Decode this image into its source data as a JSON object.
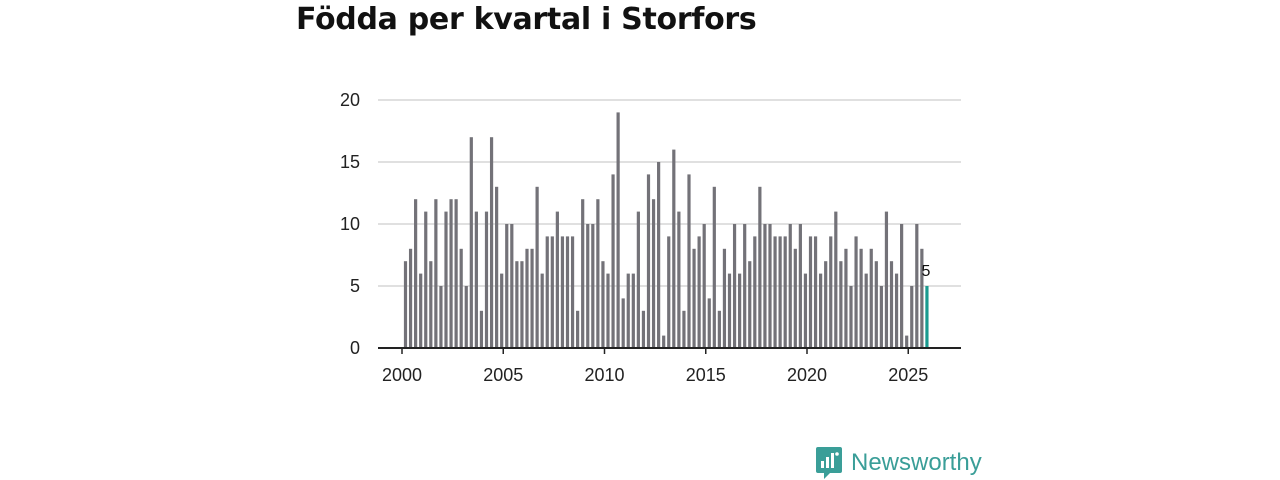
{
  "title": "Födda per kvartal i Storfors",
  "brand": "Newsworthy",
  "colors": {
    "bar": "#737278",
    "highlight": "#1a9a8f",
    "grid": "#d6d6d6",
    "axis": "#222222",
    "brand": "#3a9e98"
  },
  "chart_data": {
    "type": "bar",
    "title": "Födda per kvartal i Storfors",
    "xlabel": "",
    "ylabel": "",
    "ylim": [
      0,
      20
    ],
    "y_ticks": [
      0,
      5,
      10,
      15,
      20
    ],
    "x_ticks": [
      "2000",
      "2005",
      "2010",
      "2015",
      "2020",
      "2025"
    ],
    "start_year": 2000,
    "start_quarter": 1,
    "values": [
      7,
      8,
      12,
      6,
      11,
      7,
      12,
      5,
      11,
      12,
      12,
      8,
      5,
      17,
      11,
      3,
      11,
      17,
      13,
      6,
      10,
      10,
      7,
      7,
      8,
      8,
      13,
      6,
      9,
      9,
      11,
      9,
      9,
      9,
      3,
      12,
      10,
      10,
      12,
      7,
      6,
      14,
      19,
      4,
      6,
      6,
      11,
      3,
      14,
      12,
      15,
      1,
      9,
      16,
      11,
      3,
      14,
      8,
      9,
      10,
      4,
      13,
      3,
      8,
      6,
      10,
      6,
      10,
      7,
      9,
      13,
      10,
      10,
      9,
      9,
      9,
      10,
      8,
      10,
      6,
      9,
      9,
      6,
      7,
      9,
      11,
      7,
      8,
      5,
      9,
      8,
      6,
      8,
      7,
      5,
      11,
      7,
      6,
      10,
      1,
      5,
      10,
      8,
      5
    ],
    "highlight_last": true,
    "annotation": "5"
  }
}
